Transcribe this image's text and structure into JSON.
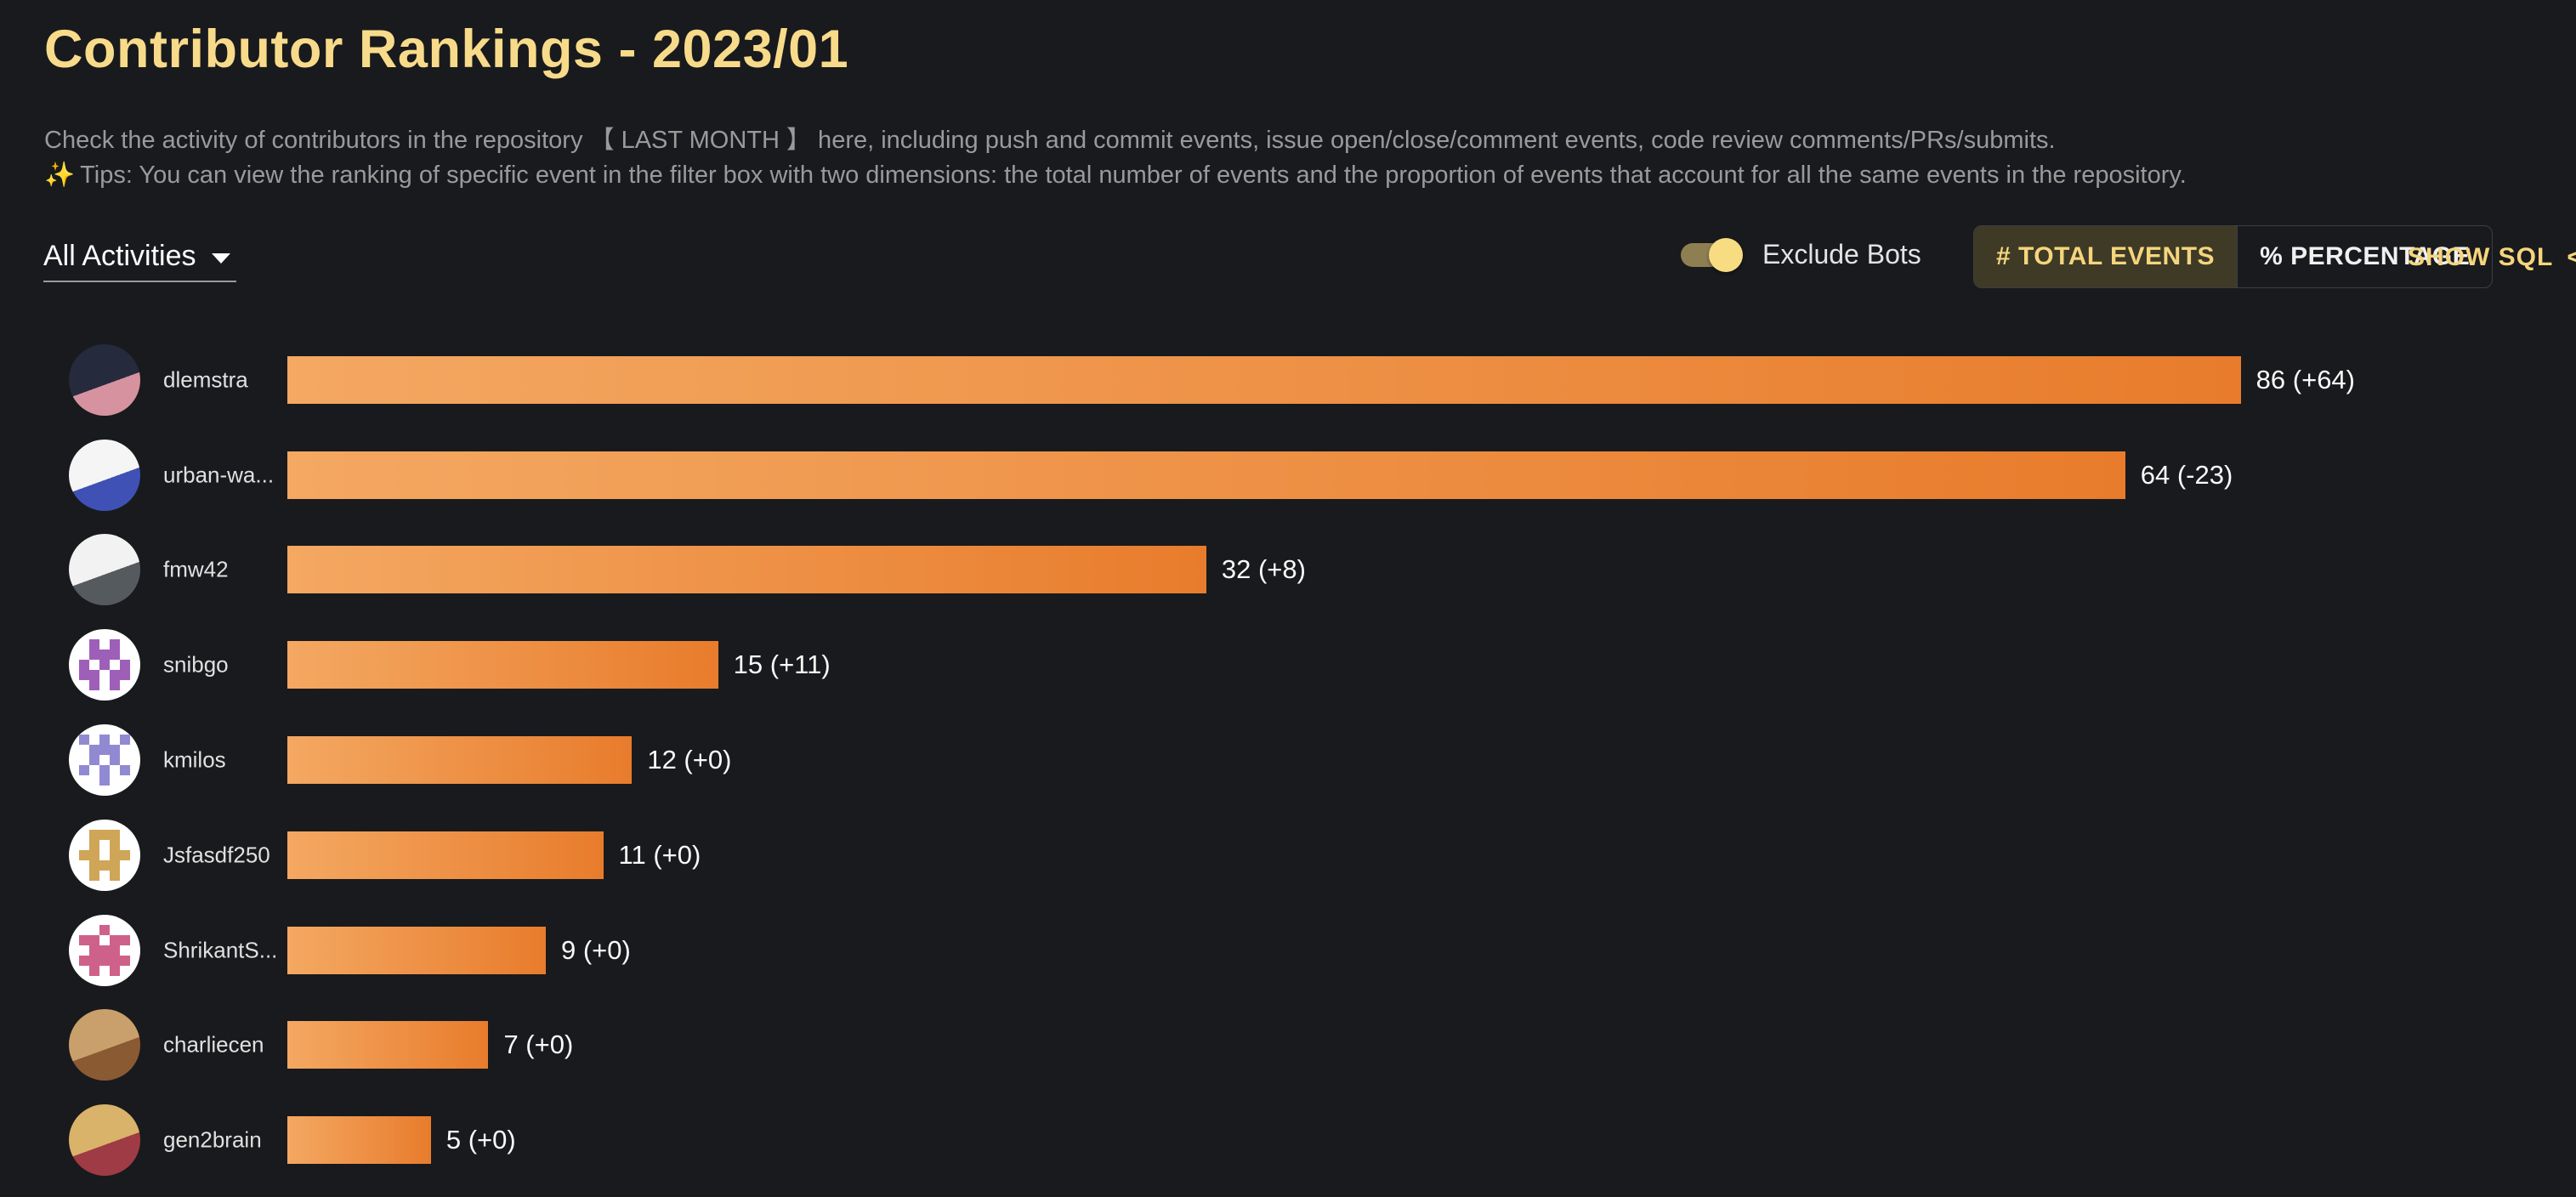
{
  "page": {
    "title": "Contributor Rankings - 2023/01",
    "description": "Check the activity of contributors in the repository 【 LAST MONTH 】 here, including push and commit events, issue open/close/comment events, code review comments/PRs/submits.",
    "tips_icon": "✨",
    "tips": "Tips: You can view the ranking of specific event in the filter box with two dimensions: the total number of events and the proportion of events that account for all the same events in the repository."
  },
  "controls": {
    "activity_filter": {
      "selected_value": "All Activities"
    },
    "exclude_bots": {
      "label": "Exclude Bots",
      "enabled": true
    },
    "metric_toggle": {
      "options": [
        {
          "label": "# TOTAL EVENTS",
          "selected": true
        },
        {
          "label": "% PERCENTAGE",
          "selected": false
        }
      ]
    },
    "show_sql": {
      "label": "SHOW SQL",
      "icon": "<>"
    }
  },
  "chart_data": {
    "type": "bar",
    "orientation": "horizontal",
    "title": "Contributor Rankings - 2023/01",
    "xlabel": "",
    "ylabel": "",
    "xlim": [
      0,
      72
    ],
    "grid": false,
    "legend": "none",
    "note": "largest bar (86) is clipped at the plot-area right edge; value labels show total events and change vs previous month",
    "categories": [
      "dlemstra",
      "urban-wa...",
      "fmw42",
      "snibgo",
      "kmilos",
      "Jsfasdf250",
      "ShrikantS...",
      "charliecen",
      "gen2brain"
    ],
    "values": [
      86,
      64,
      32,
      15,
      12,
      11,
      9,
      7,
      5
    ],
    "deltas": [
      64,
      -23,
      8,
      11,
      0,
      0,
      0,
      0,
      0
    ],
    "rows": [
      {
        "name": "dlemstra",
        "value": 86,
        "label": "86 (+64)",
        "avatar": {
          "kind": "photo",
          "colors": [
            "#262a3d",
            "#d6929f"
          ]
        }
      },
      {
        "name": "urban-wa...",
        "value": 64,
        "label": "64 (-23)",
        "avatar": {
          "kind": "photo",
          "colors": [
            "#f5f5f5",
            "#3f51b5"
          ]
        }
      },
      {
        "name": "fmw42",
        "value": 32,
        "label": "32 (+8)",
        "avatar": {
          "kind": "photo",
          "colors": [
            "#f2f2f2",
            "#555a5e"
          ]
        }
      },
      {
        "name": "snibgo",
        "value": 15,
        "label": "15 (+11)",
        "avatar": {
          "kind": "identicon",
          "bg": "#ffffff",
          "fg": "#9e5fb8",
          "pattern": [
            "01010",
            "01110",
            "10101",
            "11011",
            "01010"
          ]
        }
      },
      {
        "name": "kmilos",
        "value": 12,
        "label": "12 (+0)",
        "avatar": {
          "kind": "identicon",
          "bg": "#ffffff",
          "fg": "#918ad2",
          "pattern": [
            "10101",
            "01110",
            "01010",
            "10101",
            "00100"
          ]
        }
      },
      {
        "name": "Jsfasdf250",
        "value": 11,
        "label": "11 (+0)",
        "avatar": {
          "kind": "identicon",
          "bg": "#ffffff",
          "fg": "#cfa558",
          "pattern": [
            "01110",
            "01010",
            "11011",
            "01110",
            "01010"
          ]
        }
      },
      {
        "name": "ShrikantS...",
        "value": 9,
        "label": "9 (+0)",
        "avatar": {
          "kind": "identicon",
          "bg": "#ffffff",
          "fg": "#ce6189",
          "pattern": [
            "00100",
            "11011",
            "01110",
            "11111",
            "01010"
          ]
        }
      },
      {
        "name": "charliecen",
        "value": 7,
        "label": "7 (+0)",
        "avatar": {
          "kind": "photo",
          "colors": [
            "#c9a06b",
            "#8a5a33"
          ]
        }
      },
      {
        "name": "gen2brain",
        "value": 5,
        "label": "5 (+0)",
        "avatar": {
          "kind": "photo",
          "colors": [
            "#d9b36a",
            "#9e3b44"
          ]
        }
      }
    ]
  },
  "colors": {
    "background": "#191a1d",
    "title": "#f8db8a",
    "accent_yellow": "#f5d57d",
    "text_secondary": "#9a9a9b",
    "bar_gradient_start": "#f4a862",
    "bar_gradient_end": "#e87c2c",
    "toggle_track": "#8d7f52",
    "toggle_thumb": "#f8dc82",
    "selected_btn_bg": "#3e3a26"
  }
}
